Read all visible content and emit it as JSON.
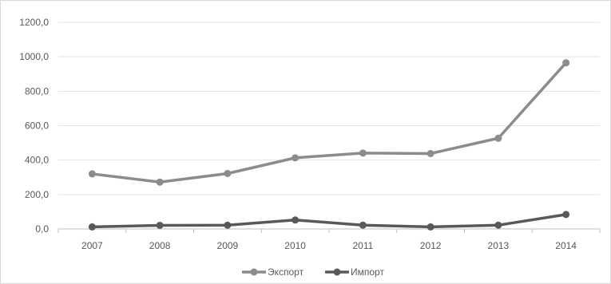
{
  "chart_data": {
    "type": "line",
    "title": "",
    "xlabel": "",
    "ylabel": "",
    "categories": [
      "2007",
      "2008",
      "2009",
      "2010",
      "2011",
      "2012",
      "2013",
      "2014"
    ],
    "y_ticks": [
      "0,0",
      "200,0",
      "400,0",
      "600,0",
      "800,0",
      "1000,0",
      "1200,0"
    ],
    "ylim": [
      0,
      1200
    ],
    "grid": "horizontal",
    "legend_position": "bottom",
    "series": [
      {
        "name": "Экспорт",
        "color": "#8c8c8c",
        "values": [
          320,
          272,
          322,
          413,
          441,
          438,
          527,
          965
        ]
      },
      {
        "name": "Импорт",
        "color": "#595959",
        "values": [
          12,
          21,
          22,
          52,
          22,
          12,
          22,
          84
        ]
      }
    ]
  }
}
